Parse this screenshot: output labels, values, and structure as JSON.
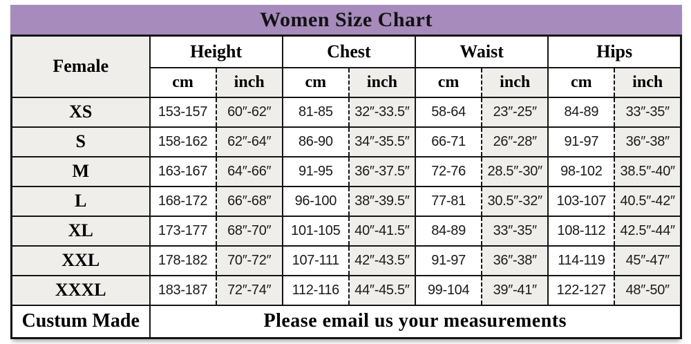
{
  "chart_data": {
    "type": "table",
    "title": "Women Size Chart",
    "corner_label": "Female",
    "groups": [
      "Height",
      "Chest",
      "Waist",
      "Hips"
    ],
    "unit_labels": {
      "cm": "cm",
      "inch": "inch"
    },
    "rows": [
      {
        "size": "XS",
        "values": [
          "153-157",
          "60″-62″",
          "81-85",
          "32″-33.5″",
          "58-64",
          "23″-25″",
          "84-89",
          "33″-35″"
        ]
      },
      {
        "size": "S",
        "values": [
          "158-162",
          "62″-64″",
          "86-90",
          "34″-35.5″",
          "66-71",
          "26″-28″",
          "91-97",
          "36″-38″"
        ]
      },
      {
        "size": "M",
        "values": [
          "163-167",
          "64″-66″",
          "91-95",
          "36″-37.5″",
          "72-76",
          "28.5″-30″",
          "98-102",
          "38.5″-40″"
        ]
      },
      {
        "size": "L",
        "values": [
          "168-172",
          "66″-68″",
          "96-100",
          "38″-39.5″",
          "77-81",
          "30.5″-32″",
          "103-107",
          "40.5″-42″"
        ]
      },
      {
        "size": "XL",
        "values": [
          "173-177",
          "68″-70″",
          "101-105",
          "40″-41.5″",
          "84-89",
          "33″-35″",
          "108-112",
          "42.5″-44″"
        ]
      },
      {
        "size": "XXL",
        "values": [
          "178-182",
          "70″-72″",
          "107-111",
          "42″-43.5″",
          "91-97",
          "36″-38″",
          "114-119",
          "45″-47″"
        ]
      },
      {
        "size": "XXXL",
        "values": [
          "183-187",
          "72″-74″",
          "112-116",
          "44″-45.5″",
          "99-104",
          "39″-41″",
          "122-127",
          "48″-50″"
        ]
      }
    ],
    "footer": {
      "label": "Custum Made",
      "message": "Please email us your measurements"
    }
  },
  "colors": {
    "title_bg": "#a78bbd",
    "cell_shade": "#efeeeb",
    "border": "#141414",
    "page_bg": "#ffffff"
  }
}
